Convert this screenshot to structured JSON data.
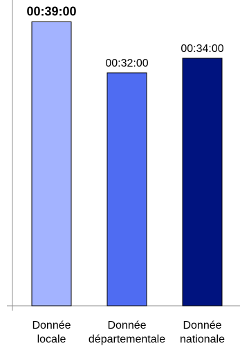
{
  "chart_data": {
    "type": "bar",
    "categories": [
      [
        "Donnée",
        "locale"
      ],
      [
        "Donnée",
        "départementale"
      ],
      [
        "Donnée",
        "nationale"
      ]
    ],
    "values": [
      39,
      32,
      34
    ],
    "value_labels": [
      "00:39:00",
      "00:32:00",
      "00:34:00"
    ],
    "highlighted_index": 0,
    "colors": [
      "#a3b3ff",
      "#4f6cf2",
      "#00137f"
    ],
    "ylim": [
      0,
      42
    ],
    "grid": false,
    "legend": "none",
    "title": "",
    "xlabel": "",
    "ylabel": ""
  }
}
